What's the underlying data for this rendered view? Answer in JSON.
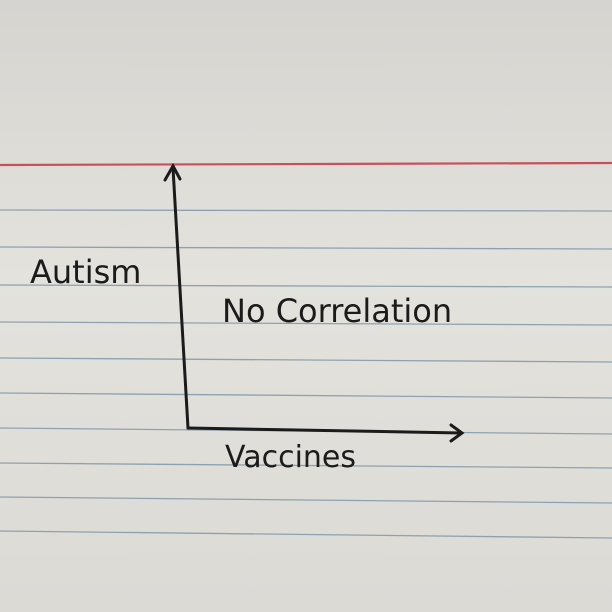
{
  "chart_data": {
    "type": "line",
    "title": "",
    "xlabel": "Vaccines",
    "ylabel": "Autism",
    "annotation": "No Correlation",
    "series": [],
    "grid": false,
    "legend": "none"
  },
  "colors": {
    "paper": "#e0dfda",
    "red_rule": "#c8505a",
    "blue_rule": "#6f8fa6",
    "ink": "#1b1b1b"
  }
}
